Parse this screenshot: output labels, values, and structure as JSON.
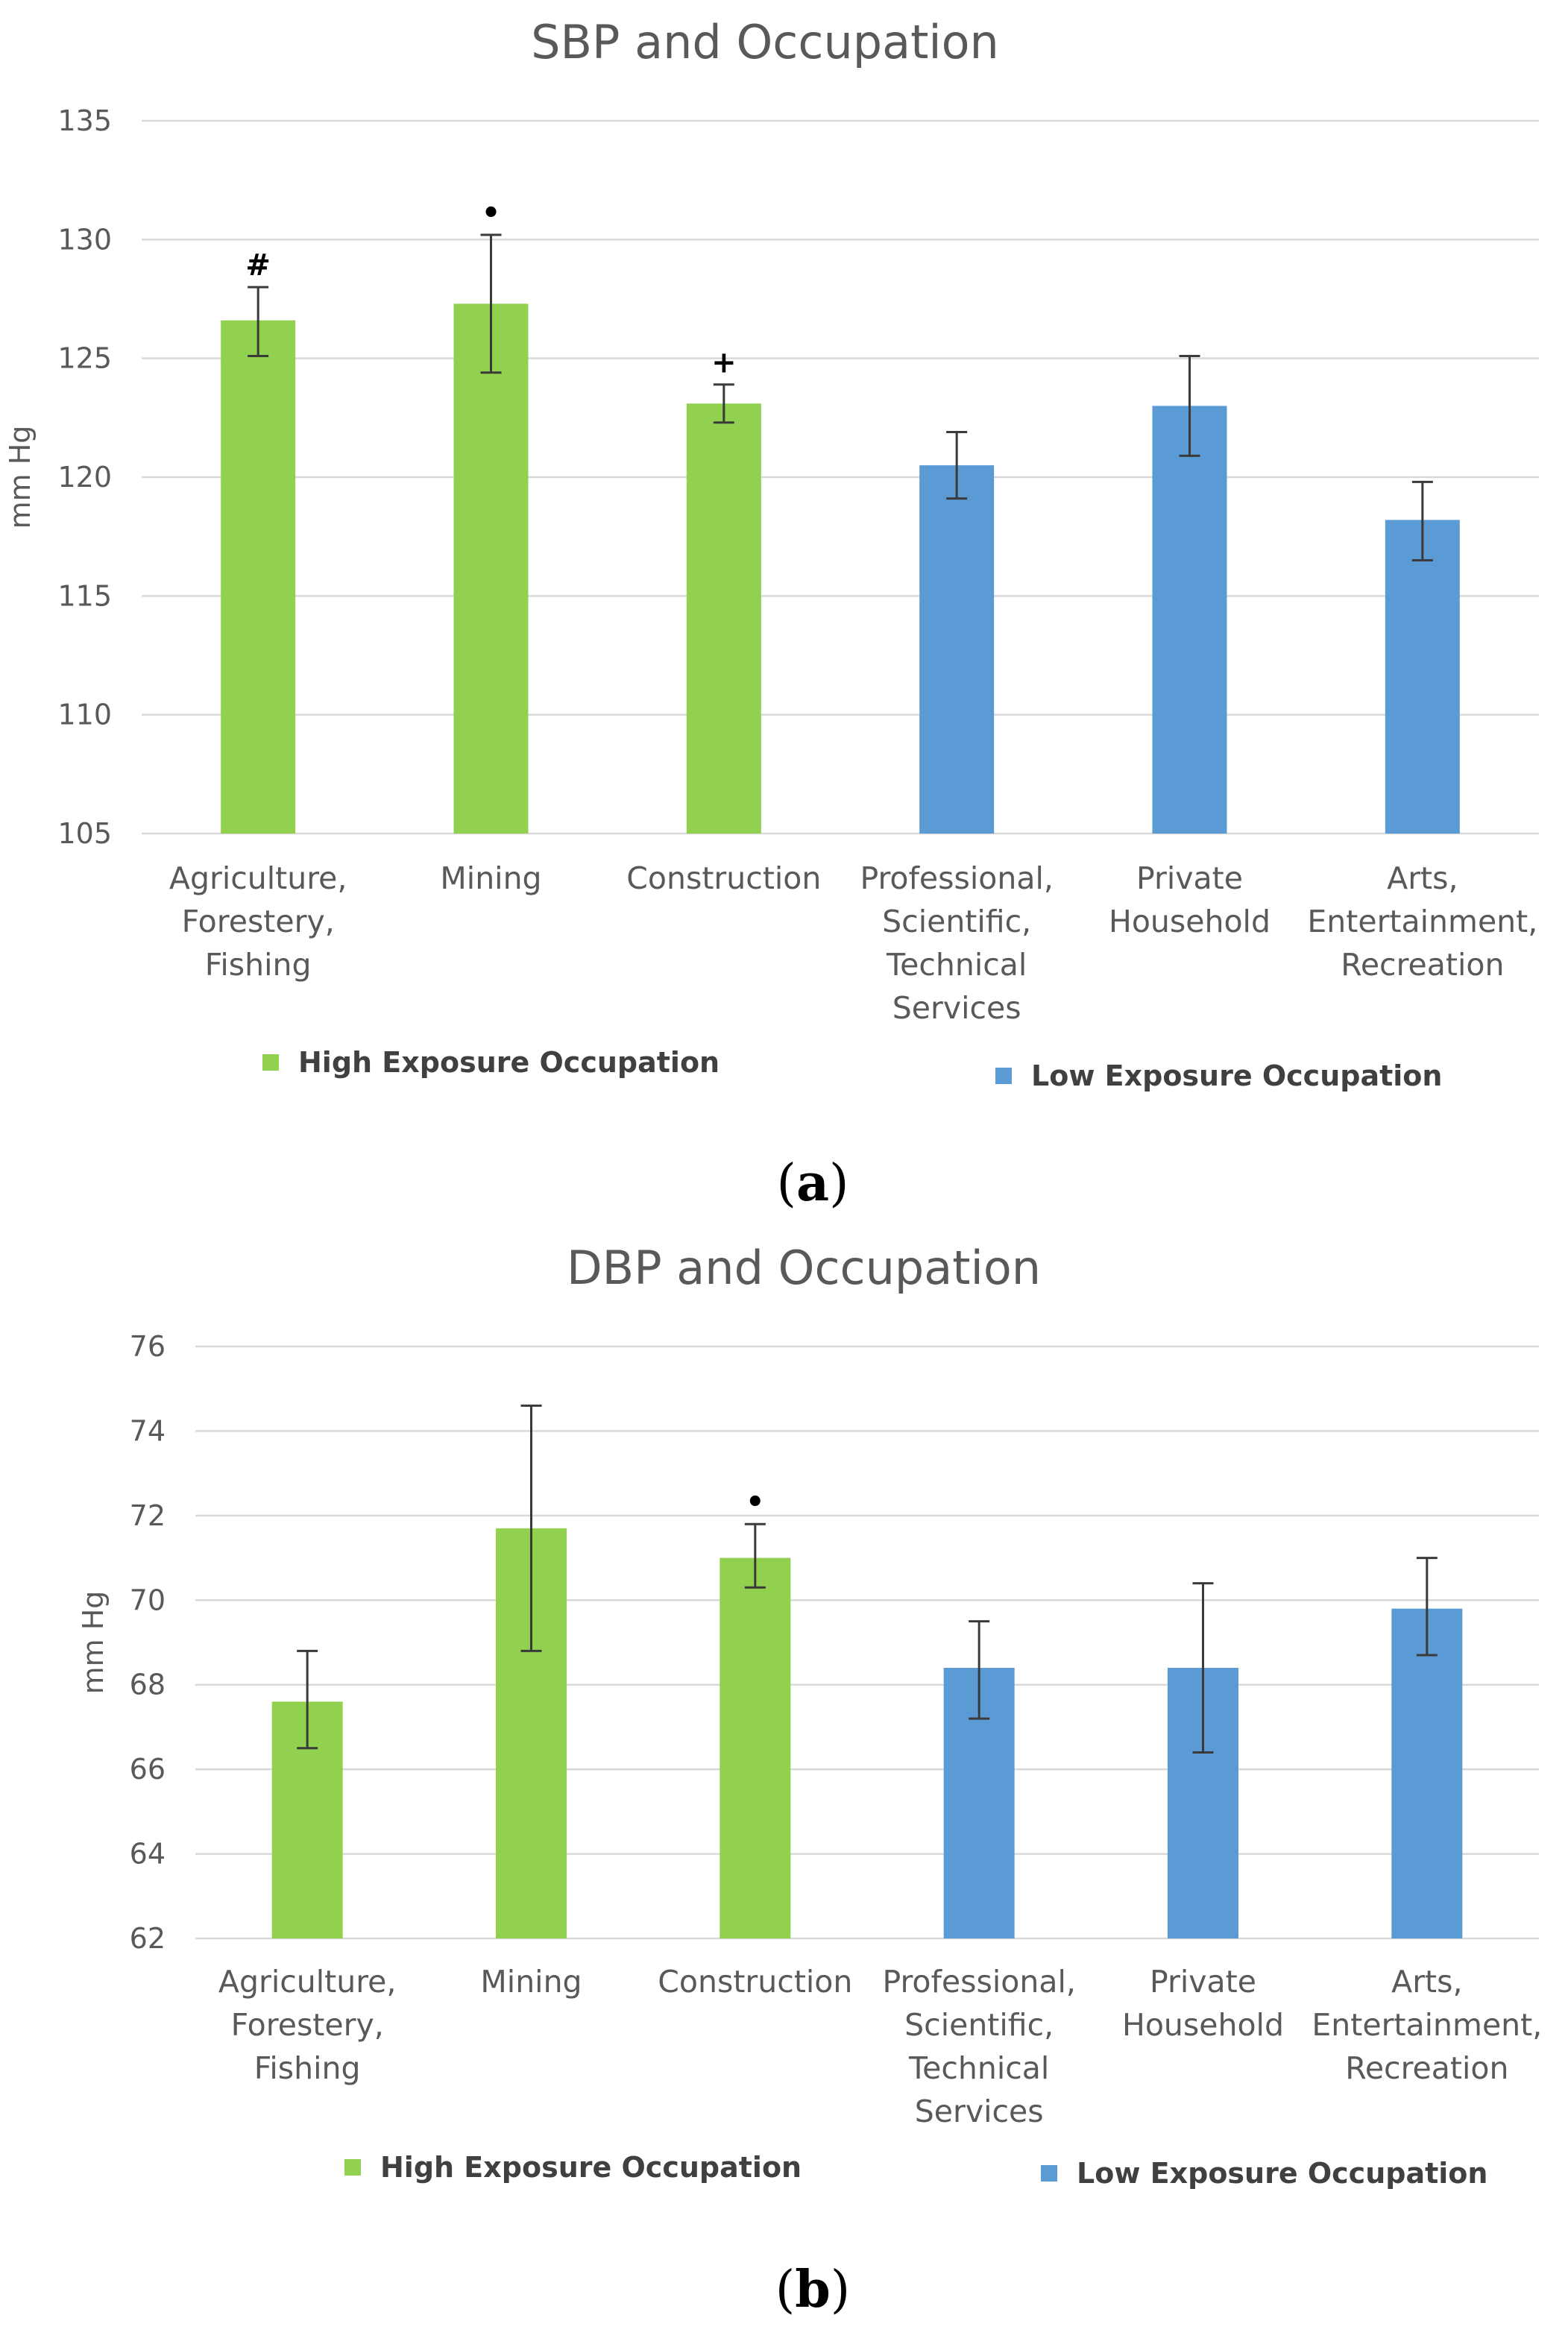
{
  "colors": {
    "high_exposure": "#92d050",
    "low_exposure": "#5b9bd5",
    "grid": "#d9d9d9",
    "text": "#595959"
  },
  "chart_data": [
    {
      "type": "bar",
      "panel_label": "a",
      "title": "SBP and Occupation",
      "ylabel": "mm Hg",
      "xlabel": "",
      "ylim": [
        105,
        135
      ],
      "yticks": [
        105,
        110,
        115,
        120,
        125,
        130,
        135
      ],
      "grid": true,
      "legend_placement": "bottom",
      "categories": [
        [
          "Agriculture,",
          "Forestery,",
          "Fishing"
        ],
        [
          "Mining"
        ],
        [
          "Construction"
        ],
        [
          "Professional,",
          "Scientific,",
          "Technical",
          "Services"
        ],
        [
          "Private",
          "Household"
        ],
        [
          "Arts,",
          "Entertainment,",
          "Recreation"
        ]
      ],
      "values": [
        126.6,
        127.3,
        123.1,
        120.5,
        123.0,
        118.2
      ],
      "error_low": [
        125.1,
        124.4,
        122.3,
        119.1,
        120.9,
        116.5
      ],
      "error_high": [
        128.0,
        130.2,
        123.9,
        121.9,
        125.1,
        119.8
      ],
      "groups": [
        "high",
        "high",
        "high",
        "low",
        "low",
        "low"
      ],
      "annotations": [
        "#",
        "•",
        "+",
        "",
        "",
        ""
      ],
      "legend": [
        {
          "label": "High Exposure Occupation",
          "group": "high"
        },
        {
          "label": "Low Exposure Occupation",
          "group": "low"
        }
      ]
    },
    {
      "type": "bar",
      "panel_label": "b",
      "title": "DBP and Occupation",
      "ylabel": "mm Hg",
      "xlabel": "",
      "ylim": [
        62,
        76
      ],
      "yticks": [
        62,
        64,
        66,
        68,
        70,
        72,
        74,
        76
      ],
      "grid": true,
      "legend_placement": "bottom",
      "categories": [
        [
          "Agriculture,",
          "Forestery,",
          "Fishing"
        ],
        [
          "Mining"
        ],
        [
          "Construction"
        ],
        [
          "Professional,",
          "Scientific,",
          "Technical",
          "Services"
        ],
        [
          "Private",
          "Household"
        ],
        [
          "Arts,",
          "Entertainment,",
          "Recreation"
        ]
      ],
      "values": [
        67.6,
        71.7,
        71.0,
        68.4,
        68.4,
        69.8
      ],
      "error_low": [
        66.5,
        68.8,
        70.3,
        67.2,
        66.4,
        68.7
      ],
      "error_high": [
        68.8,
        74.6,
        71.8,
        69.5,
        70.4,
        71.0
      ],
      "groups": [
        "high",
        "high",
        "high",
        "low",
        "low",
        "low"
      ],
      "annotations": [
        "",
        "",
        "•",
        "",
        "",
        ""
      ],
      "legend": [
        {
          "label": "High Exposure Occupation",
          "group": "high"
        },
        {
          "label": "Low Exposure Occupation",
          "group": "low"
        }
      ]
    }
  ]
}
